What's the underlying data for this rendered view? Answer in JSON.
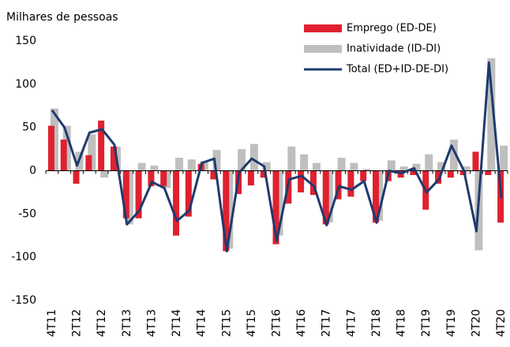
{
  "chart_data": {
    "type": "bar-line",
    "y_axis_label": "Milhares de pessoas",
    "categories": [
      "4T11",
      null,
      "2T12",
      null,
      "4T12",
      null,
      "2T13",
      null,
      "4T13",
      null,
      "2T14",
      null,
      "4T14",
      null,
      "2T15",
      null,
      "4T15",
      null,
      "2T16",
      null,
      "4T16",
      null,
      "2T17",
      null,
      "4T17",
      null,
      "2T18",
      null,
      "4T18",
      null,
      "2T19",
      null,
      "4T19",
      null,
      "2T20",
      null,
      "4T20"
    ],
    "series": [
      {
        "name": "Emprego (ED-DE)",
        "type": "bar",
        "color": "#e0202f",
        "values": [
          52,
          36,
          -15,
          18,
          58,
          28,
          -55,
          -55,
          -18,
          -18,
          -75,
          -53,
          8,
          -10,
          -93,
          -27,
          -17,
          -8,
          -85,
          -38,
          -25,
          -28,
          -62,
          -33,
          -30,
          -12,
          -60,
          -12,
          -8,
          -5,
          -45,
          -15,
          -8,
          -5,
          22,
          -5,
          -60
        ]
      },
      {
        "name": "Inatividade (ID-DI)",
        "type": "bar",
        "color": "#bfbfbf",
        "values": [
          72,
          52,
          22,
          42,
          -8,
          28,
          -62,
          9,
          6,
          -20,
          15,
          13,
          11,
          24,
          -90,
          25,
          31,
          10,
          -75,
          28,
          19,
          9,
          -60,
          15,
          9,
          2,
          -58,
          12,
          5,
          8,
          19,
          10,
          36,
          5,
          -92,
          130,
          29
        ]
      },
      {
        "name": "Total (ED+ID-DE-DI)",
        "type": "line",
        "color": "#1f3a6e",
        "values": [
          70,
          50,
          6,
          44,
          48,
          30,
          -62,
          -46,
          -13,
          -20,
          -58,
          -46,
          9,
          14,
          -93,
          -2,
          14,
          5,
          -81,
          -10,
          -6,
          -18,
          -63,
          -18,
          -22,
          -12,
          -60,
          0,
          -3,
          3,
          -25,
          -10,
          29,
          0,
          -70,
          125,
          -32
        ]
      }
    ],
    "ylim": [
      -150,
      150
    ],
    "yticks": [
      -150,
      -100,
      -50,
      0,
      50,
      100,
      150
    ],
    "grid": false,
    "legend": "top-right"
  }
}
